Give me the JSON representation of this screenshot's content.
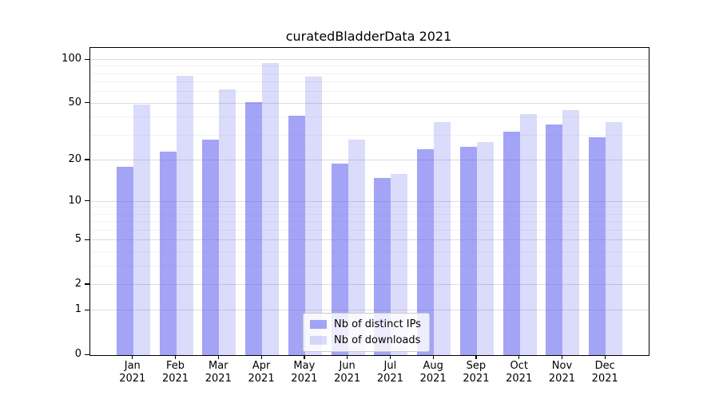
{
  "title": "curatedBladderData 2021",
  "chart_data": {
    "type": "bar",
    "title": "curatedBladderData 2021",
    "categories": [
      "Jan 2021",
      "Feb 2021",
      "Mar 2021",
      "Apr 2021",
      "May 2021",
      "Jun 2021",
      "Jul 2021",
      "Aug 2021",
      "Sep 2021",
      "Oct 2021",
      "Nov 2021",
      "Dec 2021"
    ],
    "series": [
      {
        "name": "Nb of distinct IPs",
        "color": "rgba(103,103,240,0.60)",
        "values": [
          18,
          23,
          28,
          51,
          41,
          19,
          15,
          24,
          25,
          32,
          36,
          29
        ]
      },
      {
        "name": "Nb of downloads",
        "color": "rgba(103,103,240,0.24)",
        "values": [
          49,
          78,
          63,
          95,
          77,
          28,
          16,
          37,
          27,
          42,
          45,
          37
        ]
      }
    ],
    "xlabel": "",
    "ylabel": "",
    "yscale": "log1p",
    "ylim": [
      0,
      121
    ],
    "y_major_ticks": [
      0,
      1,
      2,
      5,
      10,
      20,
      50,
      100
    ],
    "y_minor_gridlines": [
      3,
      4,
      6,
      7,
      8,
      9,
      30,
      40,
      60,
      70,
      80,
      90
    ],
    "grid": "horizontal major and minor",
    "legend_position": "lower center inside plot"
  },
  "colors": {
    "bar_base": "#6767f0",
    "grid_major": "#dcdcdc",
    "grid_minor": "#f2f2f2",
    "spine": "#000000",
    "legend_border": "#cccccc"
  }
}
